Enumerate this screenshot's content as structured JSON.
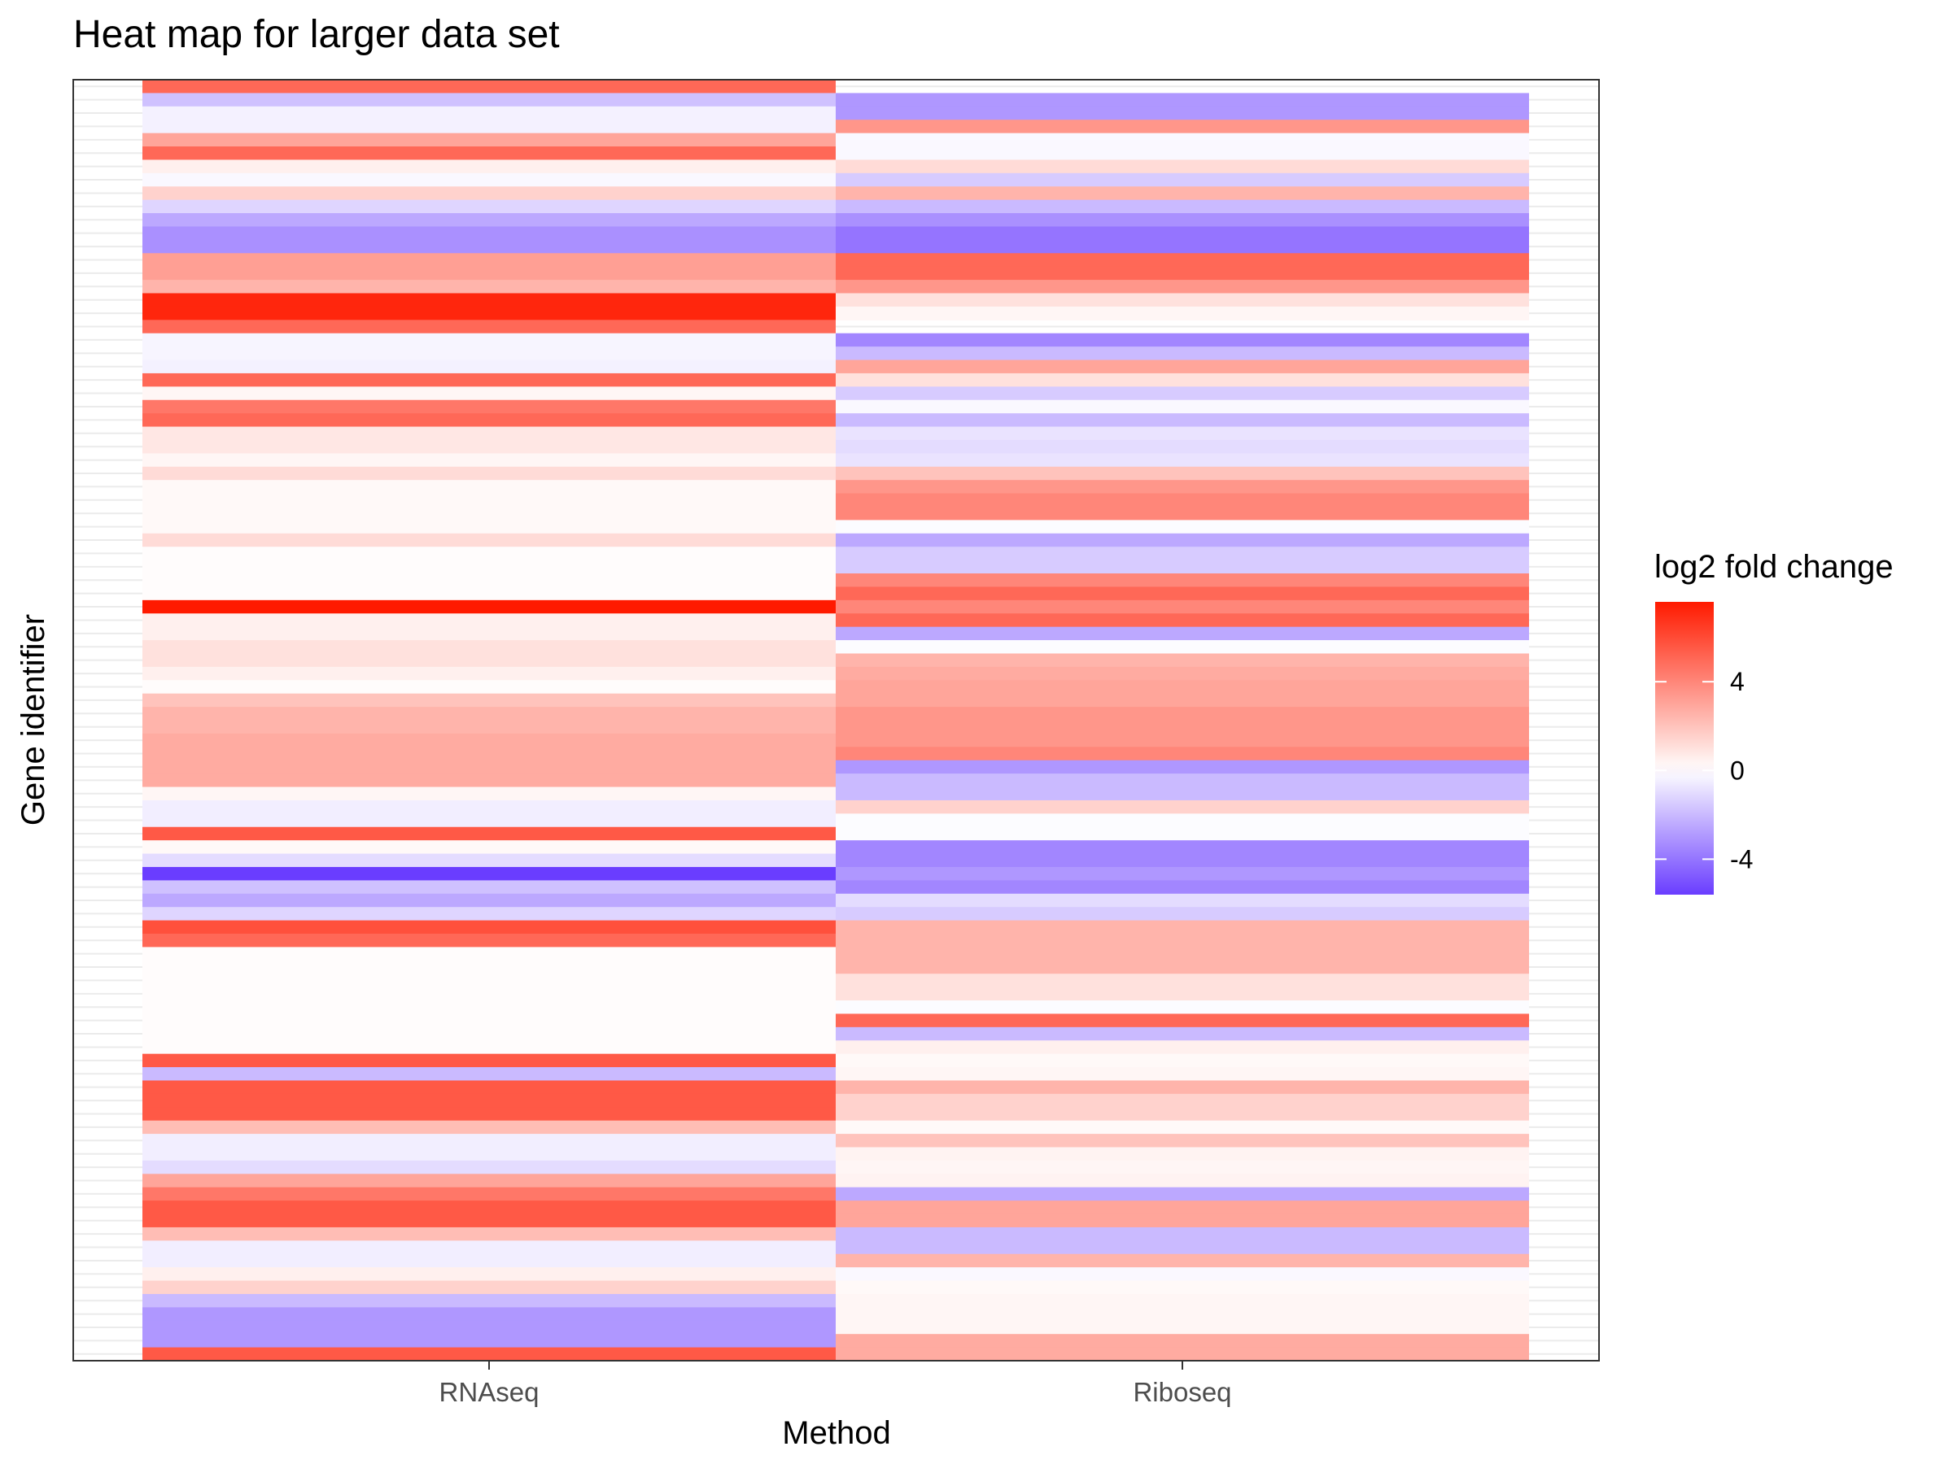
{
  "chart_data": {
    "type": "heatmap",
    "title": "Heat map for larger data set",
    "xlabel": "Method",
    "ylabel": "Gene identifier",
    "x_categories": [
      "RNAseq",
      "Riboseq"
    ],
    "n_genes": 96,
    "grid": true,
    "legend": {
      "title": "log2 fold change",
      "position": "right",
      "ticks": [
        4,
        0,
        -4
      ],
      "tick_labels": [
        "4",
        "0",
        "-4"
      ],
      "min": -5.6,
      "max": 7.6,
      "low_color": "#6a3dff",
      "mid_color": "#ffffff",
      "high_color": "#ff1a00"
    },
    "series": [
      {
        "name": "RNAseq",
        "values": [
          5.0,
          -1.8,
          -0.4,
          -0.4,
          3.0,
          5.0,
          0.5,
          -0.2,
          1.5,
          -1.2,
          -2.5,
          -3.2,
          -3.2,
          3.2,
          3.2,
          2.5,
          7.2,
          7.2,
          5.0,
          -0.3,
          -0.3,
          -0.4,
          5.0,
          0.3,
          4.5,
          5.0,
          0.8,
          0.8,
          0.3,
          1.2,
          0.2,
          0.2,
          0.2,
          0.2,
          1.2,
          0.1,
          0.1,
          0.1,
          0.1,
          7.6,
          0.5,
          0.5,
          1.0,
          1.0,
          0.5,
          0.1,
          2.0,
          2.5,
          2.5,
          2.8,
          2.8,
          2.8,
          2.8,
          0.3,
          -0.5,
          -0.5,
          5.5,
          0.2,
          -1.0,
          -5.6,
          -1.8,
          -2.5,
          -1.2,
          5.8,
          5.0,
          0.1,
          0.1,
          0.1,
          0.1,
          0.1,
          0.1,
          0.1,
          0.1,
          5.5,
          -2.0,
          5.5,
          5.5,
          5.5,
          2.2,
          -0.5,
          -0.5,
          -1.0,
          3.0,
          4.5,
          5.5,
          5.5,
          2.2,
          -0.5,
          -0.5,
          0.5,
          1.5,
          -2.0,
          -3.0,
          -3.0,
          -3.0,
          5.5
        ]
      },
      {
        "name": "Riboseq",
        "values": [
          null,
          -3.0,
          -3.0,
          3.5,
          -0.2,
          -0.2,
          1.2,
          -1.5,
          2.5,
          -2.0,
          -3.2,
          -4.0,
          -4.0,
          5.0,
          5.0,
          3.5,
          1.0,
          0.3,
          null,
          -3.5,
          -2.0,
          3.0,
          1.0,
          -1.5,
          -0.2,
          -2.0,
          -0.8,
          -1.0,
          -0.8,
          2.0,
          3.5,
          4.0,
          4.0,
          -0.1,
          -2.5,
          -1.5,
          -1.5,
          4.0,
          5.0,
          4.0,
          5.0,
          -2.5,
          -0.1,
          2.5,
          2.8,
          3.0,
          3.0,
          3.5,
          3.5,
          3.5,
          4.0,
          -3.0,
          -2.0,
          -2.0,
          1.5,
          -0.1,
          -0.1,
          -3.5,
          -3.5,
          -3.0,
          -3.5,
          -1.0,
          -1.5,
          2.5,
          2.5,
          2.5,
          2.5,
          1.0,
          1.0,
          -0.1,
          5.0,
          -2.0,
          0.5,
          0.2,
          0.3,
          2.5,
          1.5,
          1.5,
          0.2,
          2.0,
          0.4,
          0.3,
          0.4,
          -2.5,
          3.0,
          3.0,
          -2.0,
          -2.0,
          2.5,
          -0.2,
          0.2,
          0.3,
          0.3,
          0.3,
          2.8,
          2.8
        ]
      }
    ]
  }
}
